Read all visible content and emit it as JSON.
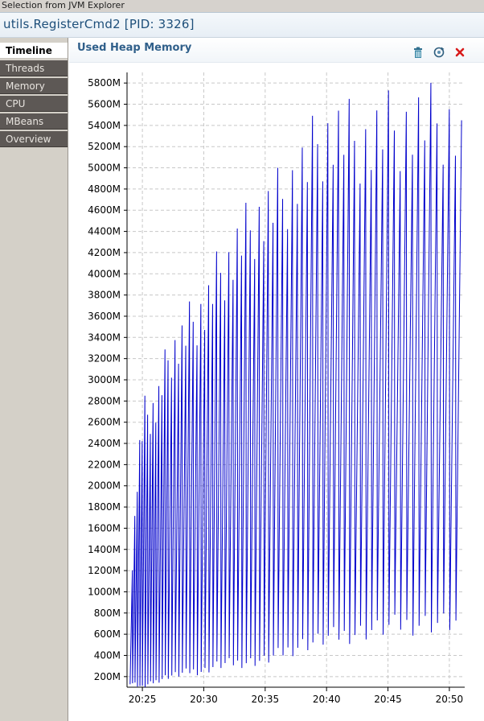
{
  "window": {
    "title": "Selection from JVM Explorer"
  },
  "header": {
    "title": "utils.RegisterCmd2 [PID: 3326]"
  },
  "sidebar": {
    "tabs": [
      {
        "label": "Timeline",
        "active": true
      },
      {
        "label": "Threads",
        "active": false
      },
      {
        "label": "Memory",
        "active": false
      },
      {
        "label": "CPU",
        "active": false
      },
      {
        "label": "MBeans",
        "active": false
      },
      {
        "label": "Overview",
        "active": false
      }
    ]
  },
  "panel": {
    "title": "Used Heap Memory",
    "toolbar": [
      {
        "icon": "trash-icon",
        "color": "#2f6f8f"
      },
      {
        "icon": "refresh-icon",
        "color": "#2f5f7f"
      },
      {
        "icon": "close-icon",
        "color": "#d81b1b"
      }
    ]
  },
  "chart_data": {
    "type": "line",
    "title": "",
    "xlabel": "",
    "ylabel": "",
    "line_color": "#0000cc",
    "grid": true,
    "ylim": [
      100,
      5900
    ],
    "yticks": [
      "200M",
      "400M",
      "600M",
      "800M",
      "1000M",
      "1200M",
      "1400M",
      "1600M",
      "1800M",
      "2000M",
      "2200M",
      "2400M",
      "2600M",
      "2800M",
      "3000M",
      "3200M",
      "3400M",
      "3600M",
      "3800M",
      "4000M",
      "4200M",
      "4400M",
      "4600M",
      "4800M",
      "5000M",
      "5200M",
      "5400M",
      "5600M",
      "5800M"
    ],
    "yticks_values": [
      200,
      400,
      600,
      800,
      1000,
      1200,
      1400,
      1600,
      1800,
      2000,
      2200,
      2400,
      2600,
      2800,
      3000,
      3200,
      3400,
      3600,
      3800,
      4000,
      4200,
      4400,
      4600,
      4800,
      5000,
      5200,
      5400,
      5600,
      5800
    ],
    "xlim": [
      "20:23:45",
      "20:51:15"
    ],
    "xticks": [
      "20:25",
      "20:30",
      "20:35",
      "20:40",
      "20:45",
      "20:50"
    ],
    "series": [
      {
        "envelope_upper": [
          [
            "20:24:00",
            1400
          ],
          [
            "20:24:30",
            2400
          ],
          [
            "20:25:00",
            2850
          ],
          [
            "20:26:00",
            2950
          ],
          [
            "20:27:00",
            3500
          ],
          [
            "20:28:00",
            3600
          ],
          [
            "20:29:00",
            3850
          ],
          [
            "20:30:00",
            3950
          ],
          [
            "20:31:00",
            4300
          ],
          [
            "20:32:00",
            4450
          ],
          [
            "20:33:00",
            4650
          ],
          [
            "20:34:00",
            4850
          ],
          [
            "20:35:00",
            4900
          ],
          [
            "20:36:00",
            5050
          ],
          [
            "20:37:00",
            5250
          ],
          [
            "20:38:00",
            5350
          ],
          [
            "20:39:00",
            5650
          ],
          [
            "20:40:00",
            5700
          ],
          [
            "20:41:00",
            5650
          ],
          [
            "20:42:00",
            5650
          ],
          [
            "20:43:00",
            5620
          ],
          [
            "20:44:00",
            5700
          ],
          [
            "20:45:00",
            5750
          ],
          [
            "20:46:00",
            5800
          ],
          [
            "20:47:00",
            5800
          ],
          [
            "20:48:00",
            5800
          ],
          [
            "20:49:00",
            5850
          ],
          [
            "20:50:00",
            5800
          ],
          [
            "20:50:30",
            5650
          ],
          [
            "20:51:00",
            4620
          ]
        ],
        "envelope_lower": [
          [
            "20:24:00",
            150
          ],
          [
            "20:25:00",
            100
          ],
          [
            "20:26:00",
            150
          ],
          [
            "20:27:00",
            200
          ],
          [
            "20:28:00",
            220
          ],
          [
            "20:29:00",
            250
          ],
          [
            "20:30:00",
            250
          ],
          [
            "20:31:00",
            300
          ],
          [
            "20:32:00",
            320
          ],
          [
            "20:33:00",
            330
          ],
          [
            "20:34:00",
            340
          ],
          [
            "20:35:00",
            350
          ],
          [
            "20:36:00",
            400
          ],
          [
            "20:37:00",
            450
          ],
          [
            "20:38:00",
            500
          ],
          [
            "20:39:00",
            520
          ],
          [
            "20:40:00",
            560
          ],
          [
            "20:41:00",
            580
          ],
          [
            "20:42:00",
            600
          ],
          [
            "20:43:00",
            620
          ],
          [
            "20:44:00",
            640
          ],
          [
            "20:45:00",
            660
          ],
          [
            "20:46:00",
            680
          ],
          [
            "20:47:00",
            690
          ],
          [
            "20:48:00",
            700
          ],
          [
            "20:49:00",
            700
          ],
          [
            "20:50:00",
            700
          ],
          [
            "20:51:00",
            700
          ]
        ],
        "cycles_per_minute": [
          5,
          4.5,
          4,
          3.5,
          3.3,
          3.2,
          3.1,
          3.0,
          2.9,
          2.8,
          2.7,
          2.6,
          2.5,
          2.5,
          2.4,
          2.4,
          2.3,
          2.3,
          2.2,
          2.2,
          2.1,
          2.1,
          2.0,
          2.0,
          2.0,
          2.0,
          2.0,
          2.0
        ]
      }
    ]
  }
}
